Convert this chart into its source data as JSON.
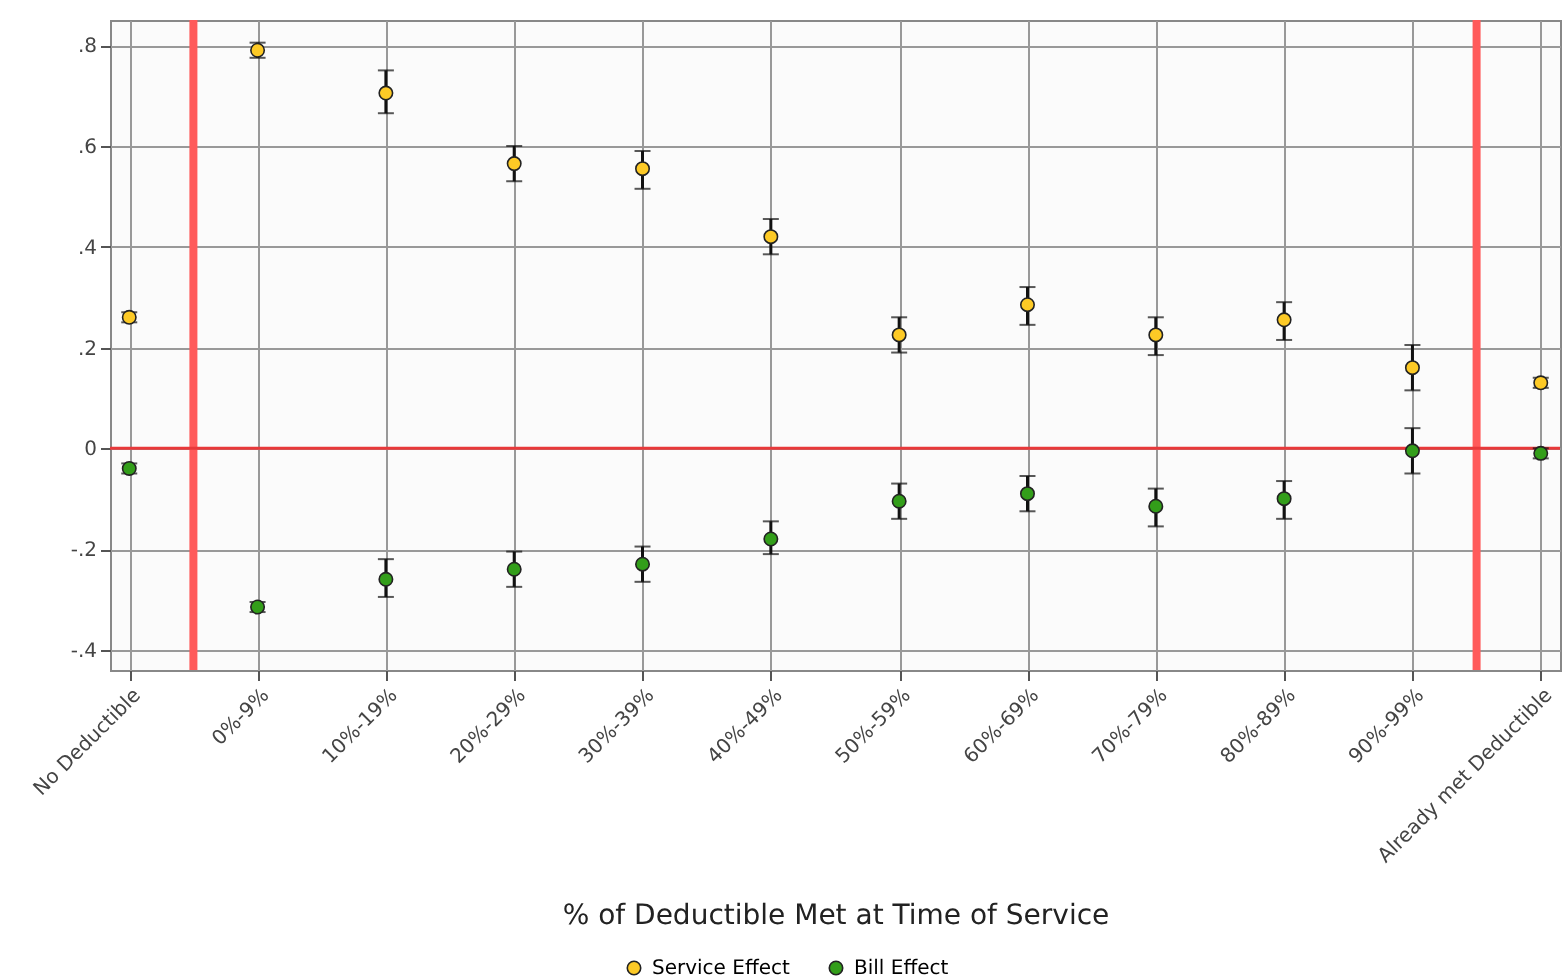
{
  "chart_data": {
    "type": "scatter",
    "xlabel": "% of Deductible Met at Time of Service",
    "categories": [
      "No Deductible",
      "0%-9%",
      "10%-19%",
      "20%-29%",
      "30%-39%",
      "40%-49%",
      "50%-59%",
      "60%-69%",
      "70%-79%",
      "80%-89%",
      "90%-99%",
      "Already met Deductible"
    ],
    "series": [
      {
        "name": "Service Effect",
        "color": "#fdca26",
        "values": [
          0.26,
          0.79,
          0.705,
          0.565,
          0.555,
          0.42,
          0.225,
          0.285,
          0.225,
          0.255,
          0.16,
          0.13
        ],
        "errors": [
          [
            0.25,
            0.27
          ],
          [
            0.775,
            0.805
          ],
          [
            0.665,
            0.75
          ],
          [
            0.53,
            0.6
          ],
          [
            0.515,
            0.59
          ],
          [
            0.385,
            0.455
          ],
          [
            0.19,
            0.26
          ],
          [
            0.245,
            0.32
          ],
          [
            0.185,
            0.26
          ],
          [
            0.215,
            0.29
          ],
          [
            0.115,
            0.205
          ],
          [
            0.12,
            0.14
          ]
        ]
      },
      {
        "name": "Bill Effect",
        "color": "#339e1a",
        "values": [
          -0.04,
          -0.315,
          -0.26,
          -0.24,
          -0.23,
          -0.18,
          -0.105,
          -0.09,
          -0.115,
          -0.1,
          -0.005,
          -0.01
        ],
        "errors": [
          [
            -0.05,
            -0.03
          ],
          [
            -0.325,
            -0.305
          ],
          [
            -0.295,
            -0.22
          ],
          [
            -0.275,
            -0.205
          ],
          [
            -0.265,
            -0.195
          ],
          [
            -0.21,
            -0.145
          ],
          [
            -0.14,
            -0.07
          ],
          [
            -0.125,
            -0.055
          ],
          [
            -0.155,
            -0.08
          ],
          [
            -0.14,
            -0.065
          ],
          [
            -0.05,
            0.04
          ],
          [
            -0.02,
            0.0
          ]
        ]
      }
    ],
    "ylim": [
      -0.44,
      0.85
    ],
    "yticks": [
      {
        "value": -0.4,
        "label": "-.4"
      },
      {
        "value": -0.2,
        "label": "-.2"
      },
      0,
      {
        "value": 0.2,
        "label": ".2"
      },
      {
        "value": 0.4,
        "label": ".4"
      },
      {
        "value": 0.6,
        "label": ".6"
      },
      {
        "value": 0.8,
        "label": ".8"
      }
    ],
    "ref_lines": [
      {
        "axis": "y",
        "value": 0,
        "color": "#e8383a"
      }
    ],
    "grid": true,
    "legend": "bottom",
    "marker": "circle"
  }
}
